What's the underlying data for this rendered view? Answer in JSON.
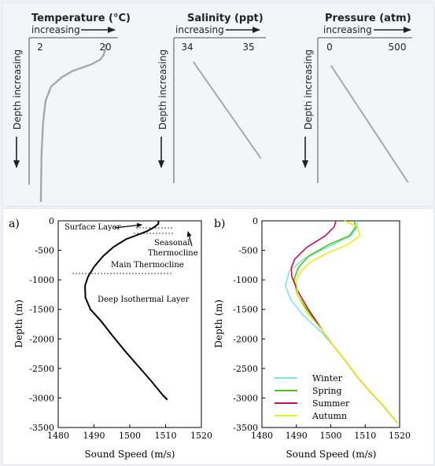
{
  "chart_data": [
    {
      "type": "line",
      "title": "Temperature (°C)",
      "direction_label": "increasing",
      "ylabel": "Depth increasing",
      "tick_labels": [
        "2",
        "20"
      ],
      "series": [
        {
          "values": [
            [
              20,
              0.0
            ],
            [
              20,
              0.03
            ],
            [
              19.5,
              0.07
            ],
            [
              18.5,
              0.1
            ],
            [
              16,
              0.13
            ],
            [
              11,
              0.17
            ],
            [
              8,
              0.21
            ],
            [
              5,
              0.27
            ],
            [
              3.5,
              0.36
            ],
            [
              2.8,
              0.5
            ],
            [
              2.4,
              0.7
            ],
            [
              2.2,
              1.0
            ]
          ]
        }
      ]
    },
    {
      "type": "line",
      "title": "Salinity (ppt)",
      "direction_label": "increasing",
      "ylabel": "Depth increasing",
      "tick_labels": [
        "34",
        "35"
      ],
      "series": [
        {
          "values": [
            [
              34.1,
              0.16
            ],
            [
              35.2,
              0.8
            ]
          ]
        }
      ]
    },
    {
      "type": "line",
      "title": "Pressure (atm)",
      "direction_label": "increasing",
      "ylabel": "Depth increasing",
      "tick_labels": [
        "0",
        "500"
      ],
      "series": [
        {
          "values": [
            [
              10,
              0.18
            ],
            [
              580,
              0.94
            ]
          ]
        }
      ]
    },
    {
      "type": "line",
      "panel_label": "a)",
      "xlabel": "Sound Speed (m/s)",
      "ylabel": "Depth (m)",
      "xlim": [
        1480,
        1520
      ],
      "ylim": [
        -3500,
        0
      ],
      "x_ticks": [
        1480,
        1490,
        1500,
        1510,
        1520
      ],
      "y_ticks": [
        0,
        -500,
        -1000,
        -1500,
        -2000,
        -2500,
        -3000,
        -3500
      ],
      "series": [
        {
          "color": "#000000",
          "values": [
            [
              1508.0,
              0
            ],
            [
              1508.0,
              -50
            ],
            [
              1507.0,
              -100
            ],
            [
              1505.0,
              -170
            ],
            [
              1503.0,
              -220
            ],
            [
              1499.0,
              -310
            ],
            [
              1495.5,
              -440
            ],
            [
              1492.5,
              -600
            ],
            [
              1490.0,
              -780
            ],
            [
              1488.3,
              -950
            ],
            [
              1487.5,
              -1100
            ],
            [
              1487.6,
              -1300
            ],
            [
              1489.0,
              -1500
            ],
            [
              1492.0,
              -1700
            ],
            [
              1495.2,
              -1950
            ],
            [
              1498.6,
              -2200
            ],
            [
              1502.2,
              -2450
            ],
            [
              1505.8,
              -2700
            ],
            [
              1509.2,
              -2950
            ],
            [
              1510.5,
              -3030
            ]
          ]
        }
      ],
      "annotations": [
        "Surface Layer",
        "Seasonal",
        "Thermocline",
        "Main Thermocline",
        "Deep Isothermal Layer"
      ]
    },
    {
      "type": "line",
      "panel_label": "b)",
      "xlabel": "Sound Speed (m/s)",
      "ylabel": "Depth (m)",
      "xlim": [
        1480,
        1520
      ],
      "ylim": [
        -3500,
        0
      ],
      "x_ticks": [
        1480,
        1490,
        1500,
        1510,
        1520
      ],
      "y_ticks": [
        0,
        -500,
        -1000,
        -1500,
        -2000,
        -2500,
        -3000,
        -3500
      ],
      "legend": "bottom-left",
      "series": [
        {
          "name": "Winter",
          "color": "#7fe3ea",
          "values": [
            [
              1507.5,
              0
            ],
            [
              1507.7,
              -100
            ],
            [
              1506.0,
              -250
            ],
            [
              1499.0,
              -450
            ],
            [
              1492.0,
              -650
            ],
            [
              1488.0,
              -850
            ],
            [
              1486.8,
              -1100
            ],
            [
              1488.5,
              -1350
            ],
            [
              1492.0,
              -1600
            ],
            [
              1497.5,
              -1900
            ],
            [
              1500.5,
              -2100
            ],
            [
              1504.0,
              -2350
            ],
            [
              1507.8,
              -2650
            ],
            [
              1511.5,
              -2900
            ],
            [
              1515.5,
              -3150
            ],
            [
              1519.3,
              -3420
            ]
          ]
        },
        {
          "name": "Spring",
          "color": "#4ec21c",
          "values": [
            [
              1506.8,
              0
            ],
            [
              1507.3,
              -100
            ],
            [
              1505.5,
              -250
            ],
            [
              1499.5,
              -400
            ],
            [
              1493.5,
              -600
            ],
            [
              1490.5,
              -800
            ],
            [
              1489.3,
              -1000
            ],
            [
              1490.3,
              -1250
            ],
            [
              1493.0,
              -1500
            ],
            [
              1497.5,
              -1850
            ],
            [
              1500.5,
              -2100
            ],
            [
              1504.0,
              -2350
            ],
            [
              1507.8,
              -2650
            ],
            [
              1511.5,
              -2900
            ],
            [
              1515.5,
              -3150
            ],
            [
              1519.3,
              -3420
            ]
          ]
        },
        {
          "name": "Summer",
          "color": "#c8104a",
          "values": [
            [
              1501.5,
              0
            ],
            [
              1501.0,
              -100
            ],
            [
              1498.5,
              -250
            ],
            [
              1493.0,
              -450
            ],
            [
              1489.5,
              -650
            ],
            [
              1488.5,
              -800
            ],
            [
              1488.7,
              -950
            ],
            [
              1490.5,
              -1200
            ],
            [
              1493.5,
              -1500
            ],
            [
              1497.5,
              -1850
            ],
            [
              1500.5,
              -2100
            ],
            [
              1504.0,
              -2350
            ],
            [
              1507.8,
              -2650
            ],
            [
              1511.5,
              -2900
            ],
            [
              1515.5,
              -3150
            ],
            [
              1519.3,
              -3420
            ]
          ]
        },
        {
          "name": "Autumn",
          "color": "#e6ee1c",
          "values": [
            [
              1504.0,
              0
            ],
            [
              1507.8,
              -100
            ],
            [
              1508.5,
              -250
            ],
            [
              1505.0,
              -400
            ],
            [
              1499.0,
              -550
            ],
            [
              1494.0,
              -700
            ],
            [
              1491.5,
              -850
            ],
            [
              1490.0,
              -1000
            ],
            [
              1490.3,
              -1250
            ],
            [
              1493.0,
              -1550
            ],
            [
              1497.5,
              -1850
            ],
            [
              1500.5,
              -2100
            ],
            [
              1504.0,
              -2350
            ],
            [
              1507.8,
              -2650
            ],
            [
              1511.5,
              -2900
            ],
            [
              1515.5,
              -3150
            ],
            [
              1519.3,
              -3420
            ]
          ]
        }
      ]
    }
  ]
}
